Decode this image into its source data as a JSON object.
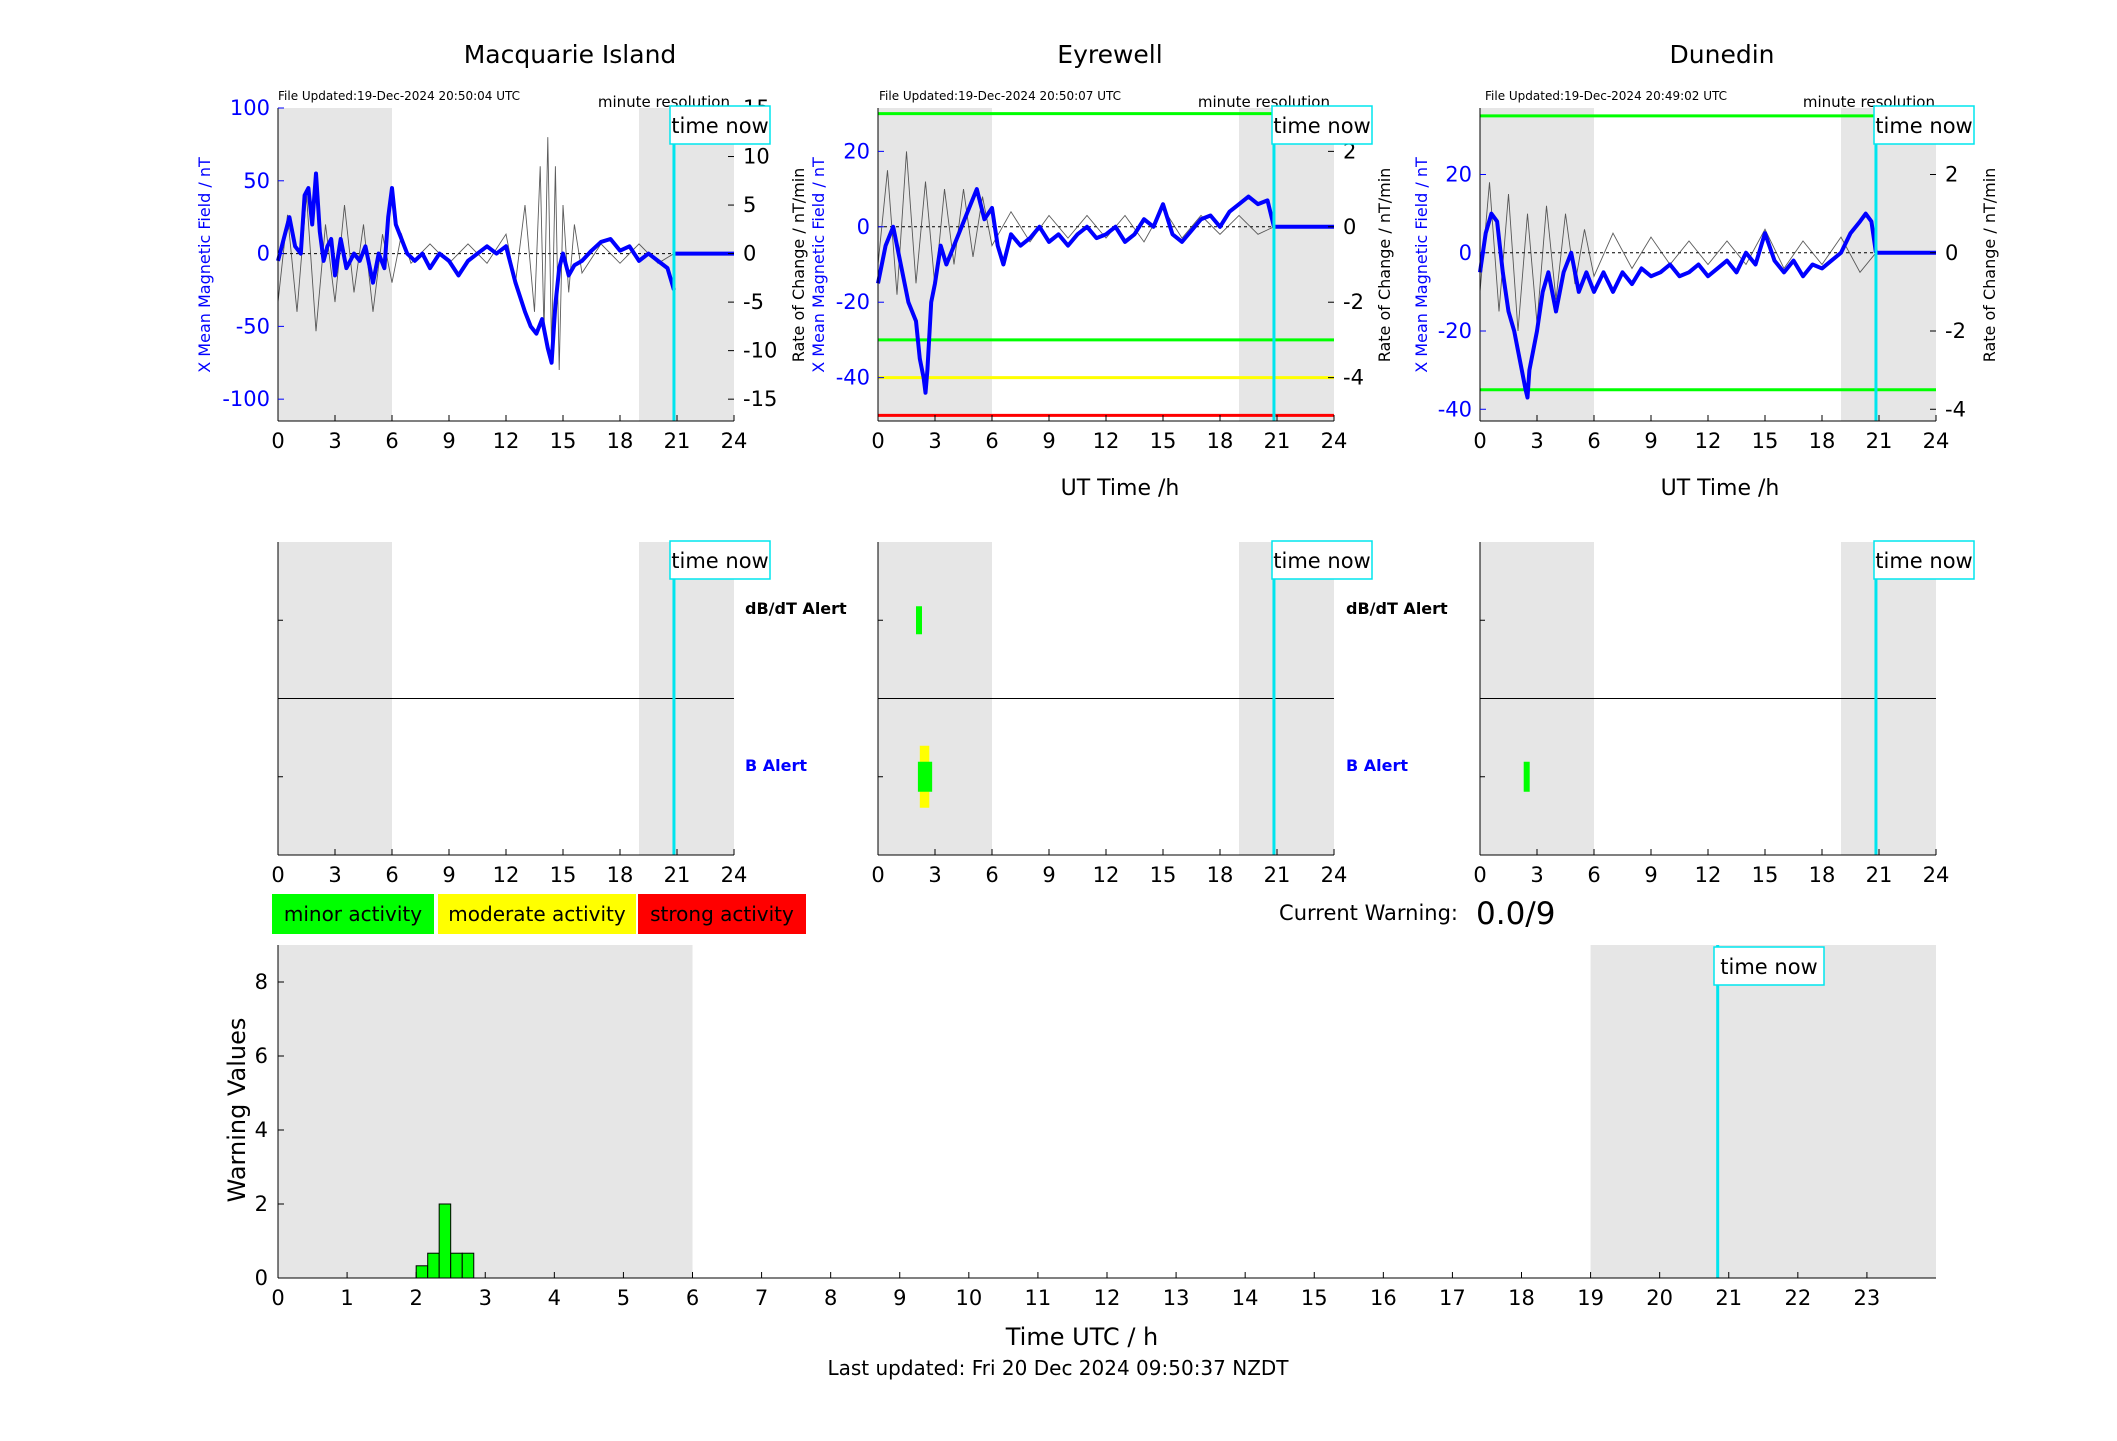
{
  "common": {
    "xlabel": "UT Time /h",
    "x_ticks": [
      "0",
      "3",
      "6",
      "9",
      "12",
      "15",
      "18",
      "21",
      "24"
    ],
    "time_now_label": "time now",
    "time_now_hour": 20.84,
    "resolution_label": "minute resolution",
    "night_shading_hours": [
      [
        0,
        6
      ],
      [
        19,
        24
      ]
    ],
    "left_axis_label": "X Mean Magnetic Field / nT",
    "right_axis_label": "Rate of Change / nT/min",
    "alert_top_label": "dB/dT Alert",
    "alert_bottom_label": "B Alert",
    "colors": {
      "field": "#0000ff",
      "rate": "#333333",
      "time_now": "#00e5ee",
      "night": "#e6e6e6",
      "minor": "#00ff00",
      "moderate": "#ffff00",
      "strong": "#ff0000"
    }
  },
  "legend": {
    "minor": "minor activity",
    "moderate": "moderate activity",
    "strong": "strong activity"
  },
  "current_warning": {
    "label": "Current Warning:",
    "value": "0.0/9"
  },
  "last_updated": "Last updated: Fri 20 Dec 2024 09:50:37 NZDT",
  "chart_data": [
    {
      "type": "line",
      "title": "Macquarie Island",
      "file_updated": "File Updated:19-Dec-2024 20:50:04 UTC",
      "xlim": [
        0,
        24
      ],
      "ylim_left": [
        -115,
        100
      ],
      "yticks_left": [
        -100,
        -50,
        0,
        50,
        100
      ],
      "ylim_right": [
        -17.25,
        15
      ],
      "yticks_right": [
        -15,
        -10,
        -5,
        0,
        5,
        10,
        15
      ],
      "thresholds": [],
      "field": {
        "x": [
          0,
          0.3,
          0.6,
          0.9,
          1.2,
          1.4,
          1.6,
          1.8,
          2.0,
          2.2,
          2.4,
          2.6,
          2.8,
          3.0,
          3.3,
          3.6,
          4.0,
          4.3,
          4.6,
          5.0,
          5.3,
          5.6,
          5.8,
          6.0,
          6.2,
          6.5,
          6.8,
          7.2,
          7.6,
          8.0,
          8.5,
          9.0,
          9.5,
          10.0,
          10.5,
          11.0,
          11.5,
          12.0,
          12.5,
          13.0,
          13.3,
          13.6,
          13.9,
          14.2,
          14.4,
          14.6,
          14.8,
          15.0,
          15.3,
          15.6,
          16.0,
          16.5,
          17.0,
          17.5,
          18.0,
          18.5,
          19.0,
          19.5,
          20.0,
          20.5,
          20.84
        ],
        "y": [
          -5,
          10,
          25,
          5,
          0,
          40,
          45,
          20,
          55,
          15,
          -5,
          5,
          10,
          -15,
          10,
          -10,
          0,
          -5,
          5,
          -20,
          0,
          -10,
          25,
          45,
          20,
          10,
          0,
          -5,
          0,
          -10,
          0,
          -5,
          -15,
          -5,
          0,
          5,
          0,
          5,
          -20,
          -40,
          -50,
          -55,
          -45,
          -65,
          -75,
          -35,
          -10,
          0,
          -15,
          -8,
          -5,
          2,
          8,
          10,
          2,
          5,
          -5,
          0,
          -5,
          -10,
          -25
        ]
      },
      "rate": {
        "x": [
          0,
          0.5,
          1,
          1.5,
          2,
          2.5,
          3,
          3.5,
          4,
          4.5,
          5,
          5.5,
          6,
          6.5,
          7,
          8,
          9,
          10,
          11,
          12,
          12.5,
          13,
          13.5,
          13.8,
          14,
          14.2,
          14.4,
          14.6,
          14.8,
          15,
          15.3,
          15.6,
          16,
          17,
          18,
          19,
          20,
          20.84
        ],
        "y": [
          -5,
          4,
          -6,
          6,
          -8,
          3,
          -5,
          5,
          -4,
          3,
          -6,
          2,
          -3,
          2,
          -1,
          1,
          -1,
          1,
          -1,
          2,
          -3,
          5,
          -6,
          9,
          -8,
          12,
          -10,
          9,
          -12,
          5,
          -4,
          3,
          -2,
          1,
          -1,
          1,
          -1,
          0
        ]
      },
      "future_level": 0,
      "alerts": {
        "dbdt": [],
        "b": []
      }
    },
    {
      "type": "line",
      "title": "Eyrewell",
      "file_updated": "File Updated:19-Dec-2024 20:50:07 UTC",
      "xlim": [
        0,
        24
      ],
      "ylim_left": [
        -51.5,
        31.5
      ],
      "yticks_left": [
        -40,
        -20,
        0,
        20
      ],
      "ylim_right": [
        -5.15,
        3.15
      ],
      "yticks_right": [
        -4,
        -2,
        0,
        2
      ],
      "thresholds": [
        {
          "value": 30,
          "color": "#00ff00"
        },
        {
          "value": -30,
          "color": "#00ff00"
        },
        {
          "value": -40,
          "color": "#ffff00"
        },
        {
          "value": -50,
          "color": "#ff0000"
        }
      ],
      "field": {
        "x": [
          0,
          0.4,
          0.8,
          1.2,
          1.6,
          2.0,
          2.2,
          2.4,
          2.5,
          2.6,
          2.8,
          3.0,
          3.3,
          3.6,
          4.0,
          4.4,
          4.8,
          5.2,
          5.6,
          6.0,
          6.3,
          6.6,
          7.0,
          7.5,
          8.0,
          8.5,
          9.0,
          9.5,
          10.0,
          10.5,
          11.0,
          11.5,
          12.0,
          12.5,
          13.0,
          13.5,
          14.0,
          14.5,
          15.0,
          15.5,
          16.0,
          16.5,
          17.0,
          17.5,
          18.0,
          18.5,
          19.0,
          19.5,
          20.0,
          20.5,
          20.84
        ],
        "y": [
          -15,
          -5,
          0,
          -10,
          -20,
          -25,
          -35,
          -40,
          -44,
          -38,
          -20,
          -15,
          -5,
          -10,
          -5,
          0,
          5,
          10,
          2,
          5,
          -5,
          -10,
          -2,
          -5,
          -3,
          0,
          -4,
          -2,
          -5,
          -2,
          0,
          -3,
          -2,
          0,
          -4,
          -2,
          2,
          0,
          6,
          -2,
          -4,
          -1,
          2,
          3,
          0,
          4,
          6,
          8,
          6,
          7,
          0
        ]
      },
      "rate": {
        "x": [
          0,
          0.5,
          1,
          1.5,
          2,
          2.5,
          3,
          3.5,
          4,
          4.5,
          5,
          5.5,
          6,
          7,
          8,
          9,
          10,
          11,
          12,
          13,
          14,
          15,
          16,
          17,
          18,
          19,
          20,
          20.84
        ],
        "y": [
          -1,
          1.5,
          -1.8,
          2,
          -1.5,
          1.2,
          -1.6,
          1,
          -1,
          1,
          -0.8,
          0.8,
          -0.5,
          0.4,
          -0.4,
          0.3,
          -0.3,
          0.3,
          -0.3,
          0.3,
          -0.4,
          0.5,
          -0.3,
          0.3,
          -0.2,
          0.3,
          -0.2,
          0
        ]
      },
      "future_level": 0,
      "alerts": {
        "dbdt": [
          {
            "start": 2.0,
            "end": 2.25,
            "color": "#00ff00"
          }
        ],
        "b": [
          {
            "start": 2.2,
            "end": 2.7,
            "color": "#ffff00"
          },
          {
            "start": 2.1,
            "end": 2.85,
            "color": "#00ff00"
          }
        ]
      }
    },
    {
      "type": "line",
      "title": "Dunedin",
      "file_updated": "File Updated:19-Dec-2024 20:49:02 UTC",
      "xlim": [
        0,
        24
      ],
      "ylim_left": [
        -43,
        37
      ],
      "yticks_left": [
        -40,
        -20,
        0,
        20
      ],
      "ylim_right": [
        -4.3,
        3.7
      ],
      "yticks_right": [
        -4,
        -2,
        0,
        2
      ],
      "thresholds": [
        {
          "value": 35,
          "color": "#00ff00"
        },
        {
          "value": -35,
          "color": "#00ff00"
        }
      ],
      "field": {
        "x": [
          0,
          0.3,
          0.6,
          0.9,
          1.2,
          1.5,
          1.8,
          2.0,
          2.2,
          2.4,
          2.5,
          2.6,
          2.8,
          3.0,
          3.3,
          3.6,
          4.0,
          4.4,
          4.8,
          5.2,
          5.6,
          6.0,
          6.5,
          7.0,
          7.5,
          8.0,
          8.5,
          9.0,
          9.5,
          10.0,
          10.5,
          11.0,
          11.5,
          12.0,
          12.5,
          13.0,
          13.5,
          14.0,
          14.5,
          15.0,
          15.5,
          16.0,
          16.5,
          17.0,
          17.5,
          18.0,
          18.5,
          19.0,
          19.5,
          20.0,
          20.3,
          20.6,
          20.84
        ],
        "y": [
          -5,
          5,
          10,
          8,
          -5,
          -15,
          -20,
          -25,
          -30,
          -35,
          -37,
          -30,
          -25,
          -20,
          -10,
          -5,
          -15,
          -5,
          0,
          -10,
          -5,
          -10,
          -5,
          -10,
          -5,
          -8,
          -4,
          -6,
          -5,
          -3,
          -6,
          -5,
          -3,
          -6,
          -4,
          -2,
          -5,
          0,
          -3,
          5,
          -2,
          -5,
          -2,
          -6,
          -3,
          -4,
          -2,
          0,
          5,
          8,
          10,
          8,
          0
        ]
      },
      "rate": {
        "x": [
          0,
          0.5,
          1,
          1.5,
          2,
          2.5,
          3,
          3.5,
          4,
          4.5,
          5,
          5.5,
          6,
          7,
          8,
          9,
          10,
          11,
          12,
          13,
          14,
          15,
          16,
          17,
          18,
          19,
          20,
          20.84
        ],
        "y": [
          -1,
          1.8,
          -1.5,
          1.5,
          -2,
          1,
          -1.8,
          1.2,
          -1.2,
          1,
          -0.8,
          0.6,
          -0.6,
          0.5,
          -0.4,
          0.4,
          -0.3,
          0.3,
          -0.3,
          0.3,
          -0.3,
          0.6,
          -0.4,
          0.3,
          -0.3,
          0.4,
          -0.5,
          0
        ]
      },
      "future_level": 0,
      "alerts": {
        "dbdt": [],
        "b": [
          {
            "start": 2.3,
            "end": 2.6,
            "color": "#00ff00"
          }
        ]
      }
    },
    {
      "type": "bar",
      "title": "",
      "xlabel": "Time UTC / h",
      "ylabel": "Warning Values",
      "xlim": [
        0,
        24
      ],
      "ylim": [
        0,
        9
      ],
      "x_ticks": [
        "0",
        "1",
        "2",
        "3",
        "4",
        "5",
        "6",
        "7",
        "8",
        "9",
        "10",
        "11",
        "12",
        "13",
        "14",
        "15",
        "16",
        "17",
        "18",
        "19",
        "20",
        "21",
        "22",
        "23"
      ],
      "y_ticks": [
        "0",
        "2",
        "4",
        "6",
        "8"
      ],
      "bar_width_hours": 0.1667,
      "bars": [
        {
          "x": 2.0,
          "value": 0.33
        },
        {
          "x": 2.167,
          "value": 0.67
        },
        {
          "x": 2.333,
          "value": 2.0
        },
        {
          "x": 2.5,
          "value": 0.67
        },
        {
          "x": 2.667,
          "value": 0.67
        }
      ]
    }
  ]
}
